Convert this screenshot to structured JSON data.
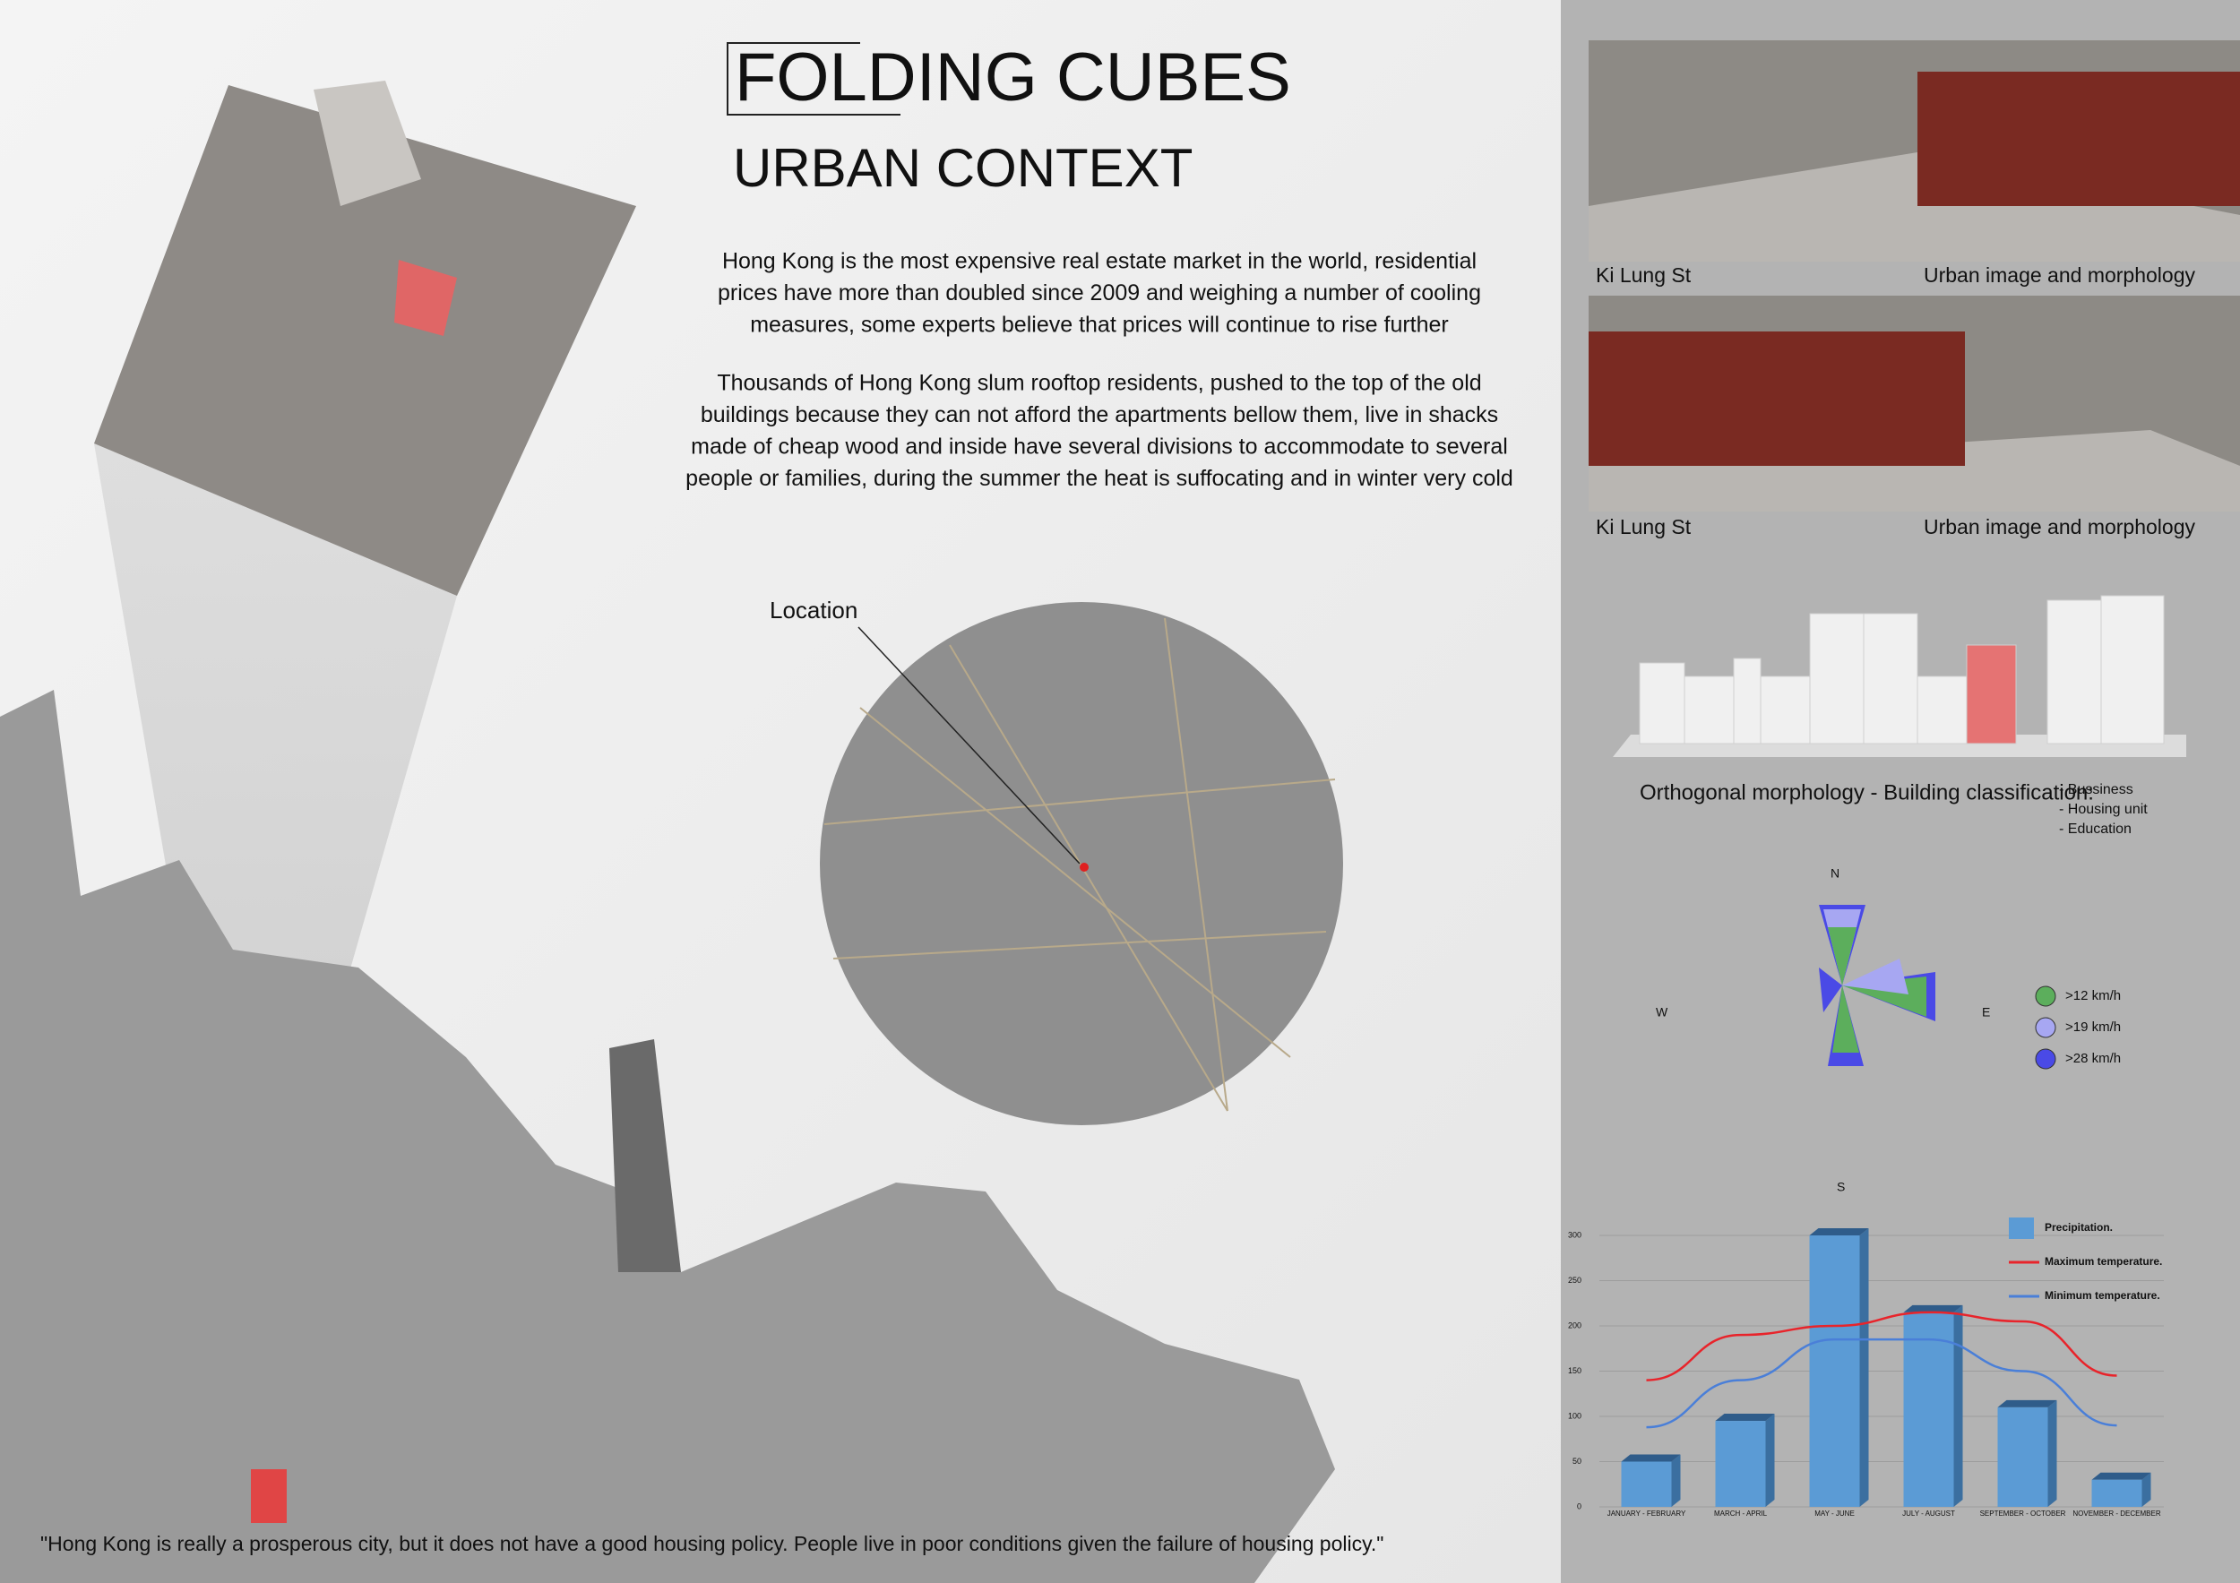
{
  "header": {
    "title": "FOLDING CUBES",
    "subtitle": "URBAN CONTEXT"
  },
  "paragraphs": [
    [
      "Hong Kong is the most expensive real estate market in the world, residential",
      "prices have more than doubled since 2009 and weighing a number of cooling",
      "measures, some experts believe that prices will continue to rise further"
    ],
    [
      "Thousands of Hong Kong slum rooftop residents, pushed to the top of the old",
      "buildings because they can not afford the apartments bellow them, live in shacks",
      "made of cheap wood and inside have several divisions to accommodate to several",
      "people or families, during the summer the heat is suffocating and in winter very cold"
    ]
  ],
  "location_label": "Location",
  "photos": [
    {
      "left": "Ki Lung St",
      "right": "Urban image and morphology"
    },
    {
      "left": "Ki Lung St",
      "right": "Urban image and morphology"
    }
  ],
  "morphology": {
    "caption": "Orthogonal morphology - Building classification:",
    "legend": [
      "- Bussiness",
      "- Housing unit",
      "- Education"
    ]
  },
  "wind_rose": {
    "compass": [
      "N",
      "W",
      "E",
      "S"
    ],
    "legend": [
      {
        "label": ">12 km/h",
        "color": "#5cae5c"
      },
      {
        "label": ">19 km/h",
        "color": "#a7a7f2"
      },
      {
        "label": ">28 km/h",
        "color": "#4a4ae6"
      }
    ]
  },
  "climate_chart": {
    "type": "bar",
    "categories": [
      "JANUARY - FEBRUARY",
      "MARCH - APRIL",
      "MAY - JUNE",
      "JULY - AUGUST",
      "SEPTEMBER - OCTOBER",
      "NOVEMBER - DECEMBER"
    ],
    "series": [
      {
        "name": "Precipitation.",
        "color": "#5b9bd5",
        "values": [
          50,
          95,
          300,
          215,
          110,
          30
        ]
      },
      {
        "name": "Maximum temperature.",
        "color": "#e8242b",
        "type": "line",
        "values": [
          140,
          190,
          200,
          215,
          205,
          145
        ]
      },
      {
        "name": "Minimum temperature.",
        "color": "#4a7fd8",
        "type": "line",
        "values": [
          88,
          140,
          185,
          185,
          150,
          90
        ]
      }
    ],
    "ylim": [
      0,
      300
    ],
    "yticks": [
      0,
      50,
      100,
      150,
      200,
      250,
      300
    ],
    "grid": true
  },
  "quote": "\"Hong Kong is really a prosperous city, but it does not have a good housing policy. People live in poor conditions given the failure of housing policy.\""
}
